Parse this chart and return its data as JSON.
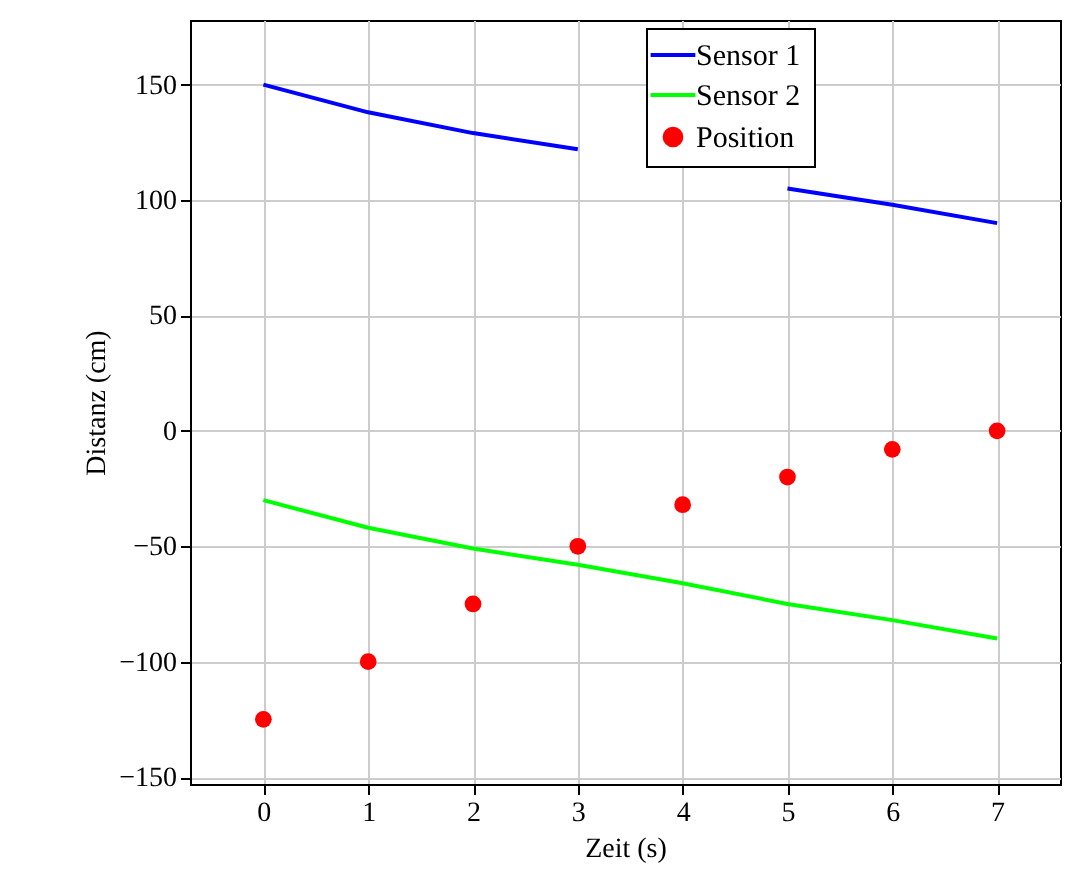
{
  "chart_data": {
    "type": "line",
    "xlabel": "Zeit (s)",
    "ylabel": "Distanz (cm)",
    "x": [
      0,
      1,
      2,
      3,
      4,
      5,
      6,
      7
    ],
    "series": [
      {
        "name": "Sensor 1",
        "type": "line",
        "color": "#0000ff",
        "values": [
          150,
          138,
          129,
          122,
          null,
          105,
          98,
          90
        ]
      },
      {
        "name": "Sensor 2",
        "type": "line",
        "color": "#00ff00",
        "values": [
          -30,
          -42,
          -51,
          -58,
          -66,
          -75,
          -82,
          -90
        ]
      },
      {
        "name": "Position",
        "type": "scatter",
        "color": "#ff0000",
        "values": [
          -125,
          -100,
          -75,
          -50,
          -32,
          -20,
          -8,
          0
        ]
      }
    ],
    "xlim": [
      -0.7,
      7.6
    ],
    "xticks": [
      0,
      1,
      2,
      3,
      4,
      5,
      6,
      7
    ],
    "ylim": [
      -153,
      178
    ],
    "yticks": [
      -150,
      -100,
      -50,
      0,
      50,
      100,
      150
    ],
    "grid": true,
    "legend": "top right"
  }
}
